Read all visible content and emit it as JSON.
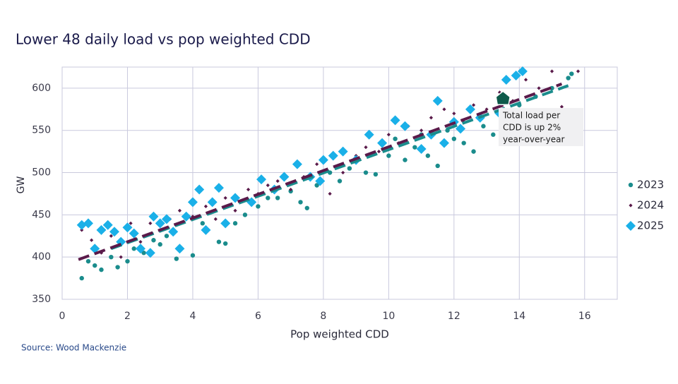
{
  "chart_data": {
    "type": "scatter",
    "title": "Lower 48 daily load vs pop weighted CDD",
    "x_label": "Pop weighted CDD",
    "y_label": "GW",
    "source": "Source: Wood Mackenzie",
    "xlim": [
      0,
      17
    ],
    "ylim": [
      350,
      625
    ],
    "xticks": [
      0,
      2,
      4,
      6,
      8,
      10,
      12,
      14,
      16
    ],
    "yticks": [
      350,
      400,
      450,
      500,
      550,
      600
    ],
    "grid": true,
    "legend": "right",
    "annotation": {
      "lines": [
        "Total load per",
        "CDD is up 2%",
        "year-over-year"
      ],
      "x": 13.5,
      "y": 588,
      "color": "#0e5a4a"
    },
    "series": [
      {
        "name": "2023",
        "color": "#1a8c8c",
        "marker": "circle",
        "x": [
          0.6,
          0.8,
          1.0,
          1.2,
          1.5,
          1.7,
          2.0,
          2.2,
          2.5,
          2.8,
          3.0,
          3.2,
          3.5,
          4.0,
          4.3,
          4.8,
          5.0,
          5.3,
          5.6,
          6.0,
          6.3,
          6.6,
          7.0,
          7.3,
          7.5,
          7.8,
          8.2,
          8.5,
          8.8,
          9.0,
          9.3,
          9.6,
          10.0,
          10.2,
          10.5,
          10.8,
          11.0,
          11.2,
          11.5,
          11.8,
          12.0,
          12.3,
          12.6,
          12.9,
          13.2,
          13.5,
          14.0,
          14.5,
          15.0,
          15.5,
          15.6
        ],
        "values": [
          375,
          395,
          390,
          385,
          400,
          388,
          395,
          410,
          405,
          420,
          415,
          425,
          398,
          402,
          440,
          418,
          416,
          440,
          450,
          460,
          470,
          470,
          478,
          465,
          458,
          485,
          500,
          490,
          505,
          515,
          500,
          498,
          520,
          540,
          515,
          530,
          545,
          520,
          508,
          550,
          540,
          535,
          525,
          555,
          545,
          570,
          580,
          590,
          600,
          612,
          617
        ],
        "trend": {
          "x": [
            1.5,
            15.5
          ],
          "values": [
            410,
            603
          ]
        }
      },
      {
        "name": "2024",
        "color": "#5a1a4a",
        "marker": "small-diamond",
        "x": [
          0.6,
          0.9,
          1.2,
          1.5,
          1.8,
          2.1,
          2.4,
          2.7,
          3.0,
          3.3,
          3.6,
          4.0,
          4.4,
          4.7,
          5.0,
          5.3,
          5.7,
          6.0,
          6.3,
          6.6,
          7.0,
          7.4,
          7.8,
          8.2,
          8.6,
          9.0,
          9.3,
          9.7,
          10.0,
          10.3,
          10.6,
          11.0,
          11.3,
          11.7,
          12.0,
          12.3,
          12.6,
          13.0,
          13.4,
          13.8,
          14.2,
          14.6,
          15.0,
          15.3,
          15.8
        ],
        "values": [
          432,
          420,
          405,
          425,
          400,
          440,
          418,
          440,
          432,
          445,
          455,
          448,
          460,
          445,
          470,
          455,
          480,
          475,
          485,
          490,
          480,
          495,
          510,
          475,
          500,
          520,
          530,
          525,
          545,
          535,
          555,
          550,
          565,
          575,
          570,
          560,
          580,
          575,
          595,
          585,
          610,
          600,
          620,
          578,
          620
        ],
        "trend": {
          "x": [
            0.5,
            15.3
          ],
          "values": [
            397,
            605
          ]
        }
      },
      {
        "name": "2025",
        "color": "#1ab0e8",
        "marker": "diamond",
        "x": [
          0.6,
          0.8,
          1.0,
          1.2,
          1.4,
          1.6,
          1.8,
          2.0,
          2.2,
          2.4,
          2.7,
          2.8,
          3.0,
          3.2,
          3.4,
          3.6,
          3.8,
          4.0,
          4.2,
          4.4,
          4.6,
          4.8,
          5.0,
          5.3,
          5.8,
          6.1,
          6.5,
          6.8,
          7.2,
          7.6,
          7.9,
          8.0,
          8.3,
          8.6,
          9.0,
          9.4,
          9.8,
          10.2,
          10.5,
          11.0,
          11.3,
          11.5,
          11.7,
          12.0,
          12.2,
          12.5,
          12.8,
          13.4,
          13.6,
          13.9,
          14.1
        ],
        "values": [
          438,
          440,
          410,
          432,
          438,
          430,
          418,
          435,
          428,
          410,
          405,
          448,
          440,
          445,
          430,
          410,
          448,
          465,
          480,
          432,
          465,
          482,
          440,
          470,
          465,
          492,
          480,
          495,
          510,
          495,
          490,
          515,
          520,
          525,
          515,
          545,
          535,
          562,
          555,
          528,
          545,
          585,
          535,
          560,
          552,
          575,
          565,
          570,
          610,
          615,
          620
        ]
      }
    ]
  }
}
